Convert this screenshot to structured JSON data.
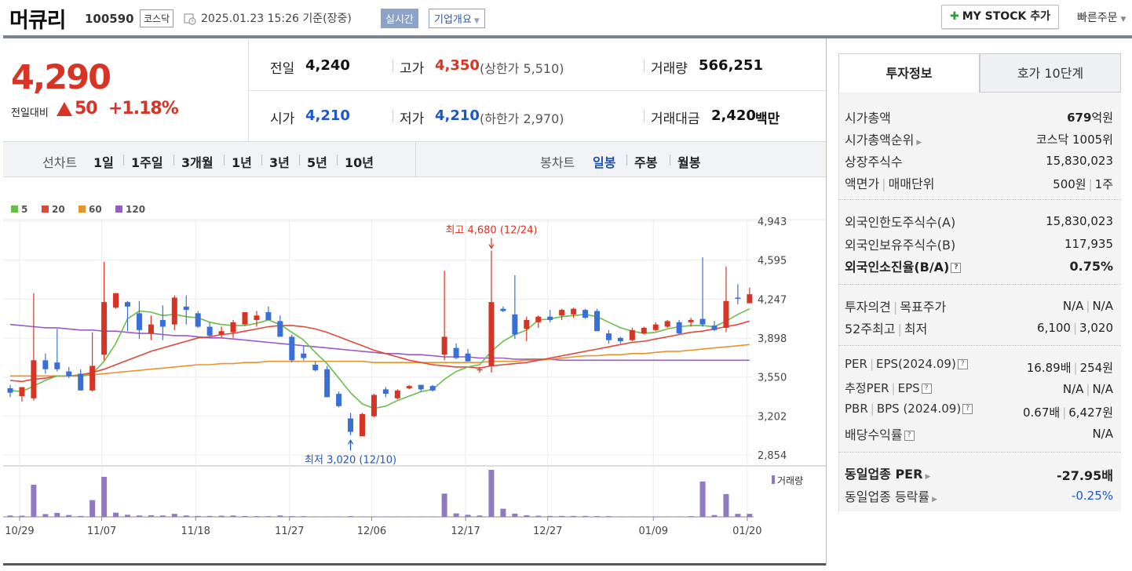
{
  "header": {
    "name": "머큐리",
    "code": "100590",
    "market": "코스닥",
    "time": "2025.01.23 15:26 기준(장중)",
    "realtime": "실시간",
    "corp_info": "기업개요",
    "mystock": "MY STOCK 추가",
    "quick_order": "빠른주문"
  },
  "price": {
    "current": "4,290",
    "compare_label": "전일대비",
    "change": "50",
    "change_pct": "+1.18%"
  },
  "quote": {
    "prev_label": "전일",
    "prev": "4,240",
    "high_label": "고가",
    "high": "4,350",
    "upper_limit": "(상한가 5,510)",
    "volume_label": "거래량",
    "volume": "566,251",
    "open_label": "시가",
    "open": "4,210",
    "low_label": "저가",
    "low": "4,210",
    "lower_limit": "(하한가 2,970)",
    "amount_label": "거래대금",
    "amount": "2,420",
    "amount_unit": "백만"
  },
  "periods": {
    "line_label": "선차트",
    "line_items": [
      "1일",
      "1주일",
      "3개월",
      "1년",
      "3년",
      "5년",
      "10년"
    ],
    "candle_label": "봉차트",
    "candle_items": [
      "일봉",
      "주봉",
      "월봉"
    ]
  },
  "colors": {
    "up": "#d63424",
    "down": "#3b6fd8",
    "ma5": "#6abf4b",
    "ma20": "#e0483a",
    "ma60": "#e8942e",
    "ma120": "#9a5ac8",
    "volume": "#9179c0"
  },
  "chart_data": {
    "type": "candlestick",
    "legend": [
      "5",
      "20",
      "60",
      "120"
    ],
    "yticks": [
      "4,943",
      "4,595",
      "4,247",
      "3,898",
      "3,550",
      "3,202",
      "2,854"
    ],
    "ylim": [
      2854,
      4943
    ],
    "xticks": [
      "10/29",
      "11/07",
      "11/18",
      "11/27",
      "12/06",
      "12/17",
      "12/27",
      "01/09",
      "01/20"
    ],
    "high_annotation": "최고 4,680 (12/24)",
    "low_annotation": "최저 3,020 (12/10)",
    "volume_label": "거래량",
    "candles": [
      {
        "o": 3450,
        "h": 3480,
        "l": 3370,
        "c": 3410
      },
      {
        "o": 3380,
        "h": 3460,
        "l": 3330,
        "c": 3460
      },
      {
        "o": 3360,
        "h": 4300,
        "l": 3340,
        "c": 3700
      },
      {
        "o": 3700,
        "h": 3760,
        "l": 3580,
        "c": 3620
      },
      {
        "o": 3680,
        "h": 3980,
        "l": 3600,
        "c": 3620
      },
      {
        "o": 3600,
        "h": 3640,
        "l": 3540,
        "c": 3560
      },
      {
        "o": 3580,
        "h": 3620,
        "l": 3430,
        "c": 3430
      },
      {
        "o": 3430,
        "h": 3950,
        "l": 3420,
        "c": 3650
      },
      {
        "o": 3750,
        "h": 4580,
        "l": 3700,
        "c": 4220
      },
      {
        "o": 4170,
        "h": 4300,
        "l": 4160,
        "c": 4300
      },
      {
        "o": 4220,
        "h": 4230,
        "l": 3960,
        "c": 4180
      },
      {
        "o": 4120,
        "h": 4230,
        "l": 3890,
        "c": 3970
      },
      {
        "o": 3940,
        "h": 4100,
        "l": 3880,
        "c": 4020
      },
      {
        "o": 4060,
        "h": 4190,
        "l": 3880,
        "c": 4000
      },
      {
        "o": 4020,
        "h": 4280,
        "l": 3970,
        "c": 4260
      },
      {
        "o": 4180,
        "h": 4280,
        "l": 4020,
        "c": 4150
      },
      {
        "o": 4120,
        "h": 4140,
        "l": 3990,
        "c": 4000
      },
      {
        "o": 4000,
        "h": 4040,
        "l": 3910,
        "c": 3920
      },
      {
        "o": 3930,
        "h": 4000,
        "l": 3900,
        "c": 3960
      },
      {
        "o": 3950,
        "h": 4060,
        "l": 3900,
        "c": 4040
      },
      {
        "o": 4020,
        "h": 4130,
        "l": 4010,
        "c": 4130
      },
      {
        "o": 4060,
        "h": 4140,
        "l": 4000,
        "c": 4100
      },
      {
        "o": 4130,
        "h": 4180,
        "l": 4060,
        "c": 4060
      },
      {
        "o": 4050,
        "h": 4100,
        "l": 3910,
        "c": 3910
      },
      {
        "o": 3910,
        "h": 3930,
        "l": 3680,
        "c": 3700
      },
      {
        "o": 3760,
        "h": 3830,
        "l": 3700,
        "c": 3720
      },
      {
        "o": 3660,
        "h": 3690,
        "l": 3600,
        "c": 3610
      },
      {
        "o": 3620,
        "h": 3650,
        "l": 3370,
        "c": 3370
      },
      {
        "o": 3400,
        "h": 3420,
        "l": 3280,
        "c": 3290
      },
      {
        "o": 3180,
        "h": 3230,
        "l": 3030,
        "c": 3060
      },
      {
        "o": 3020,
        "h": 3230,
        "l": 3020,
        "c": 3220
      },
      {
        "o": 3200,
        "h": 3400,
        "l": 3190,
        "c": 3390
      },
      {
        "o": 3440,
        "h": 3460,
        "l": 3370,
        "c": 3400
      },
      {
        "o": 3360,
        "h": 3440,
        "l": 3350,
        "c": 3430
      },
      {
        "o": 3450,
        "h": 3480,
        "l": 3440,
        "c": 3470
      },
      {
        "o": 3480,
        "h": 3480,
        "l": 3420,
        "c": 3440
      },
      {
        "o": 3470,
        "h": 3480,
        "l": 3420,
        "c": 3430
      },
      {
        "o": 3750,
        "h": 4500,
        "l": 3700,
        "c": 3910
      },
      {
        "o": 3810,
        "h": 3850,
        "l": 3710,
        "c": 3720
      },
      {
        "o": 3760,
        "h": 3800,
        "l": 3690,
        "c": 3690
      },
      {
        "o": 3610,
        "h": 3640,
        "l": 3590,
        "c": 3620
      },
      {
        "o": 3650,
        "h": 4680,
        "l": 3590,
        "c": 4220
      },
      {
        "o": 4160,
        "h": 4180,
        "l": 4130,
        "c": 4140
      },
      {
        "o": 4110,
        "h": 4460,
        "l": 3890,
        "c": 3930
      },
      {
        "o": 3980,
        "h": 4090,
        "l": 3870,
        "c": 4060
      },
      {
        "o": 4040,
        "h": 4100,
        "l": 3990,
        "c": 4090
      },
      {
        "o": 4090,
        "h": 4150,
        "l": 4040,
        "c": 4060
      },
      {
        "o": 4100,
        "h": 4160,
        "l": 4060,
        "c": 4150
      },
      {
        "o": 4110,
        "h": 4170,
        "l": 4080,
        "c": 4160
      },
      {
        "o": 4150,
        "h": 4160,
        "l": 4070,
        "c": 4080
      },
      {
        "o": 4140,
        "h": 4160,
        "l": 3960,
        "c": 3960
      },
      {
        "o": 3940,
        "h": 3970,
        "l": 3850,
        "c": 3880
      },
      {
        "o": 3900,
        "h": 3910,
        "l": 3850,
        "c": 3870
      },
      {
        "o": 3880,
        "h": 3990,
        "l": 3870,
        "c": 3970
      },
      {
        "o": 3940,
        "h": 4000,
        "l": 3930,
        "c": 3990
      },
      {
        "o": 3970,
        "h": 4040,
        "l": 3960,
        "c": 4020
      },
      {
        "o": 4000,
        "h": 4060,
        "l": 3990,
        "c": 4050
      },
      {
        "o": 4040,
        "h": 4060,
        "l": 3930,
        "c": 3940
      },
      {
        "o": 4040,
        "h": 4080,
        "l": 4000,
        "c": 4060
      },
      {
        "o": 4070,
        "h": 4620,
        "l": 4000,
        "c": 4020
      },
      {
        "o": 4010,
        "h": 4050,
        "l": 3960,
        "c": 3970
      },
      {
        "o": 3990,
        "h": 4540,
        "l": 3950,
        "c": 4230
      },
      {
        "o": 4260,
        "h": 4380,
        "l": 4200,
        "c": 4250
      },
      {
        "o": 4210,
        "h": 4350,
        "l": 4210,
        "c": 4290
      }
    ],
    "volumes": [
      60,
      50,
      1380,
      120,
      170,
      80,
      40,
      720,
      1720,
      180,
      90,
      60,
      70,
      60,
      130,
      60,
      40,
      40,
      50,
      60,
      40,
      30,
      30,
      60,
      30,
      30,
      20,
      20,
      20,
      30,
      20,
      20,
      20,
      20,
      20,
      20,
      20,
      1000,
      150,
      90,
      60,
      2020,
      350,
      140,
      70,
      50,
      40,
      40,
      40,
      40,
      30,
      30,
      20,
      20,
      20,
      20,
      20,
      20,
      30,
      1520,
      80,
      980,
      130,
      130
    ],
    "ma5": [
      3430,
      3420,
      3470,
      3520,
      3560,
      3560,
      3560,
      3580,
      3690,
      3850,
      4070,
      4140,
      4130,
      4100,
      4110,
      4090,
      4080,
      4040,
      4020,
      4010,
      4010,
      4030,
      4060,
      4020,
      3950,
      3880,
      3770,
      3670,
      3540,
      3410,
      3310,
      3270,
      3290,
      3340,
      3380,
      3420,
      3440,
      3530,
      3600,
      3640,
      3660,
      3780,
      3870,
      3930,
      3970,
      4060,
      4070,
      4090,
      4100,
      4110,
      4090,
      4040,
      3990,
      3960,
      3940,
      3950,
      3980,
      4000,
      4010,
      4010,
      4000,
      4050,
      4110,
      4160
    ],
    "ma20": [
      3520,
      3510,
      3530,
      3540,
      3560,
      3560,
      3570,
      3590,
      3620,
      3660,
      3700,
      3740,
      3780,
      3810,
      3840,
      3870,
      3900,
      3910,
      3930,
      3940,
      3960,
      3980,
      4000,
      4010,
      4010,
      4000,
      3980,
      3950,
      3910,
      3870,
      3830,
      3790,
      3760,
      3730,
      3700,
      3680,
      3660,
      3650,
      3640,
      3640,
      3630,
      3650,
      3660,
      3670,
      3680,
      3700,
      3720,
      3740,
      3760,
      3780,
      3800,
      3820,
      3840,
      3860,
      3870,
      3890,
      3910,
      3930,
      3950,
      3960,
      3980,
      4000,
      4020,
      4050
    ],
    "ma60": [
      3560,
      3560,
      3560,
      3560,
      3560,
      3560,
      3560,
      3570,
      3580,
      3590,
      3600,
      3610,
      3620,
      3630,
      3640,
      3650,
      3660,
      3660,
      3670,
      3670,
      3680,
      3680,
      3690,
      3690,
      3690,
      3690,
      3690,
      3690,
      3690,
      3690,
      3690,
      3680,
      3680,
      3680,
      3680,
      3680,
      3680,
      3680,
      3680,
      3680,
      3680,
      3690,
      3690,
      3690,
      3700,
      3700,
      3710,
      3720,
      3730,
      3740,
      3740,
      3750,
      3750,
      3760,
      3760,
      3770,
      3780,
      3780,
      3790,
      3800,
      3810,
      3820,
      3830,
      3840
    ],
    "ma120": [
      4020,
      4010,
      4000,
      3990,
      3990,
      3980,
      3970,
      3970,
      3960,
      3960,
      3950,
      3940,
      3940,
      3930,
      3920,
      3920,
      3910,
      3900,
      3900,
      3890,
      3880,
      3870,
      3860,
      3850,
      3840,
      3830,
      3820,
      3810,
      3800,
      3790,
      3780,
      3770,
      3760,
      3760,
      3750,
      3750,
      3740,
      3730,
      3730,
      3730,
      3720,
      3720,
      3720,
      3710,
      3710,
      3710,
      3710,
      3700,
      3700,
      3700,
      3700,
      3700,
      3700,
      3700,
      3700,
      3700,
      3700,
      3700,
      3700,
      3700,
      3700,
      3700,
      3700,
      3700
    ]
  },
  "info_tabs": [
    "투자정보",
    "호가 10단계"
  ],
  "info": {
    "market_cap_label": "시가총액",
    "market_cap": "679",
    "market_cap_unit": "억원",
    "rank_label": "시가총액순위",
    "rank": "코스닥 1005위",
    "shares_label": "상장주식수",
    "shares": "15,830,023",
    "par_label_a": "액면가",
    "par_label_b": "매매단위",
    "par": "500원",
    "unit": "1주",
    "foreign_limit_label": "외국인한도주식수(A)",
    "foreign_limit": "15,830,023",
    "foreign_hold_label": "외국인보유주식수(B)",
    "foreign_hold": "117,935",
    "foreign_rate_label": "외국인소진율(B/A)",
    "foreign_rate": "0.75%",
    "opinion_label_a": "투자의견",
    "opinion_label_b": "목표주가",
    "opinion": "N/A",
    "target": "N/A",
    "w52_label_a": "52주최고",
    "w52_label_b": "최저",
    "w52_high": "6,100",
    "w52_low": "3,020",
    "per_label_a": "PER",
    "per_label_b": "EPS(2024.09)",
    "per": "16.89배",
    "eps": "254원",
    "est_label_a": "추정PER",
    "est_label_b": "EPS",
    "est_per": "N/A",
    "est_eps": "N/A",
    "pbr_label_a": "PBR",
    "pbr_label_b": "BPS (2024.09)",
    "pbr": "0.67배",
    "bps": "6,427원",
    "div_label": "배당수익률",
    "div": "N/A",
    "sector_per_label": "동일업종 PER",
    "sector_per": "-27.95배",
    "sector_rate_label": "동일업종 등락률",
    "sector_rate": "-0.25%"
  }
}
